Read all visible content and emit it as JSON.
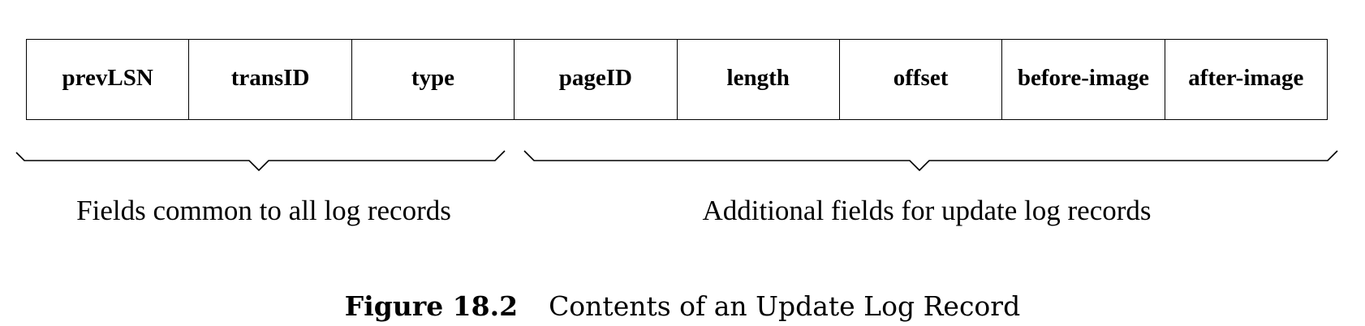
{
  "record": {
    "fields": [
      "prevLSN",
      "transID",
      "type",
      "pageID",
      "length",
      "offset",
      "before-image",
      "after-image"
    ]
  },
  "groups": {
    "common": "Fields common to all log records",
    "update": "Additional fields for update log records"
  },
  "caption": {
    "number": "Figure 18.2",
    "text": "Contents of an Update Log Record"
  }
}
